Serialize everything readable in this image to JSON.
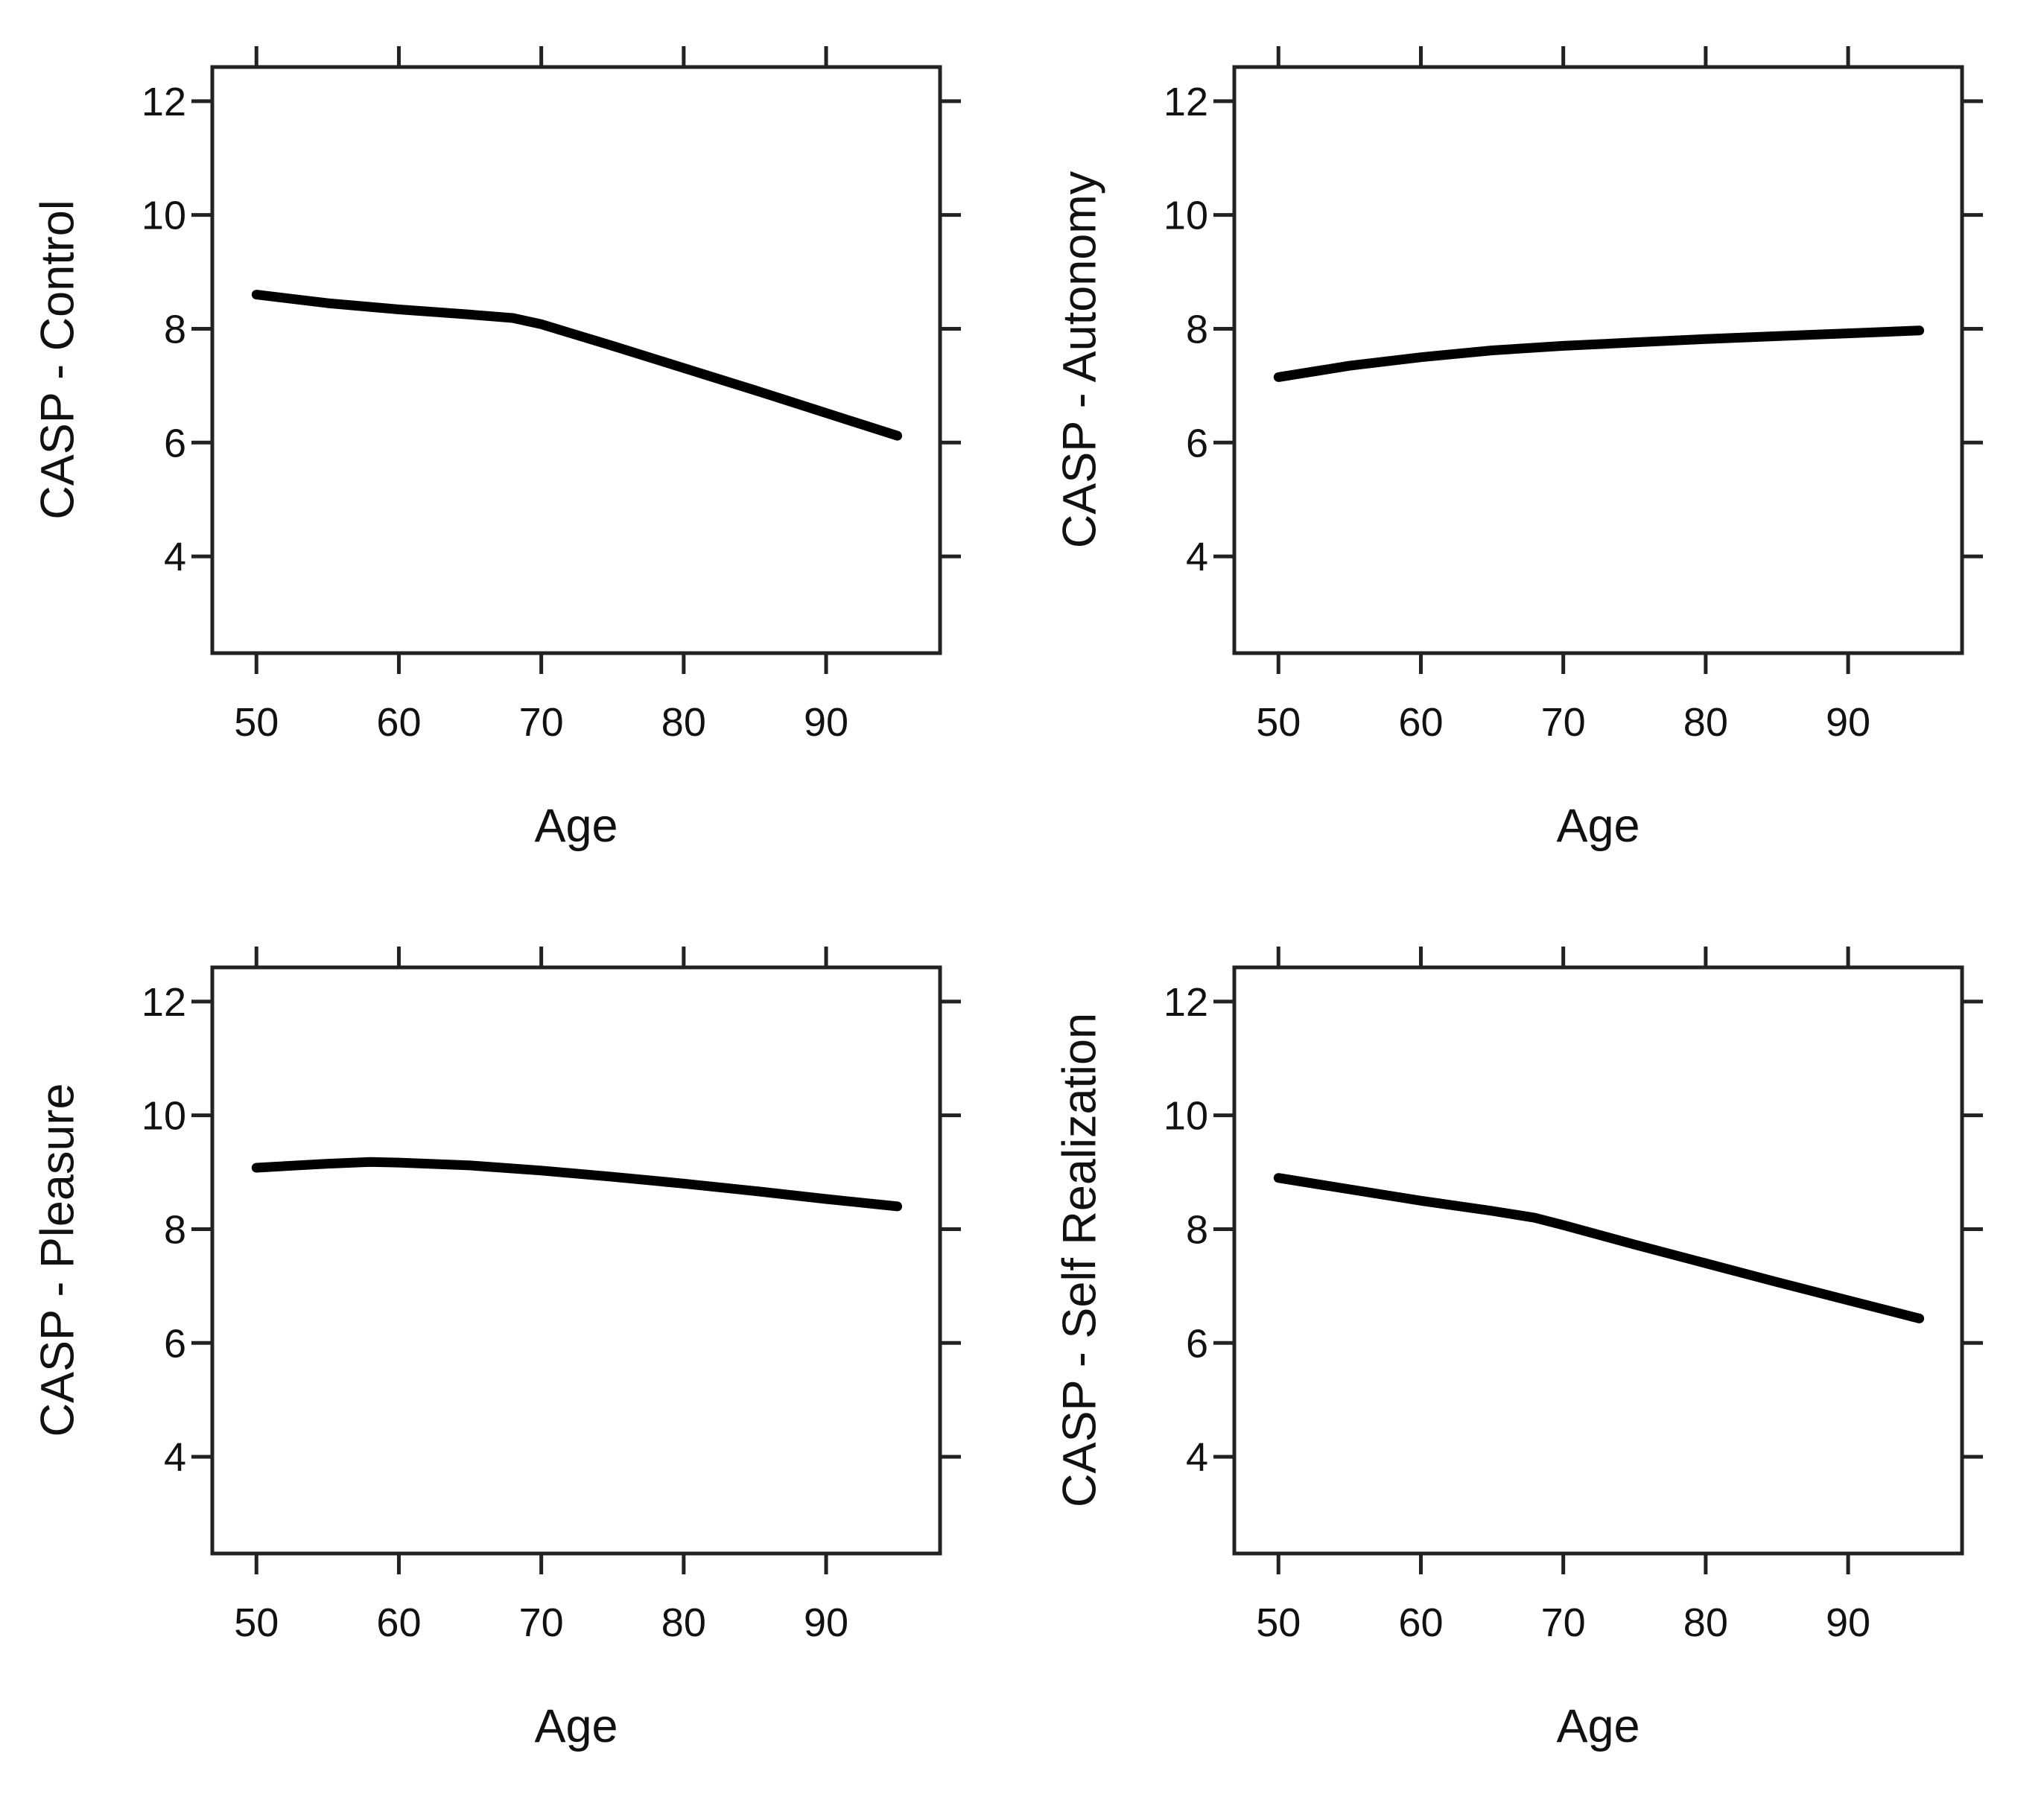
{
  "figure": {
    "background": "#ffffff",
    "text_color": "#111111",
    "axis_color": "#222222",
    "curve_color": "#000000"
  },
  "chart_data": [
    {
      "id": "casp-control",
      "type": "line",
      "title": "",
      "xlabel": "Age",
      "ylabel": "CASP - Control",
      "x": [
        50,
        55,
        60,
        65,
        68,
        70,
        75,
        80,
        85,
        90,
        95
      ],
      "y": [
        8.6,
        8.45,
        8.34,
        8.25,
        8.19,
        8.08,
        7.7,
        7.31,
        6.92,
        6.52,
        6.12
      ],
      "xticks": [
        50,
        60,
        70,
        80,
        90
      ],
      "yticks": [
        4,
        6,
        8,
        10,
        12
      ],
      "xlim": [
        46.9,
        98.0
      ],
      "ylim": [
        2.3,
        12.6
      ],
      "grid": false,
      "legend_position": "none",
      "line_color": "#000000"
    },
    {
      "id": "casp-autonomy",
      "type": "line",
      "title": "",
      "xlabel": "Age",
      "ylabel": "CASP - Autonomy",
      "x": [
        50,
        55,
        60,
        65,
        70,
        75,
        80,
        85,
        90,
        95
      ],
      "y": [
        7.15,
        7.35,
        7.5,
        7.62,
        7.7,
        7.76,
        7.82,
        7.87,
        7.92,
        7.97
      ],
      "xticks": [
        50,
        60,
        70,
        80,
        90
      ],
      "yticks": [
        4,
        6,
        8,
        10,
        12
      ],
      "xlim": [
        46.9,
        98.0
      ],
      "ylim": [
        2.3,
        12.6
      ],
      "grid": false,
      "legend_position": "none",
      "line_color": "#000000"
    },
    {
      "id": "casp-pleasure",
      "type": "line",
      "title": "",
      "xlabel": "Age",
      "ylabel": "CASP - Pleasure",
      "x": [
        50,
        55,
        58,
        60,
        65,
        70,
        75,
        80,
        85,
        90,
        95
      ],
      "y": [
        9.08,
        9.15,
        9.18,
        9.17,
        9.12,
        9.03,
        8.92,
        8.8,
        8.67,
        8.53,
        8.4
      ],
      "xticks": [
        50,
        60,
        70,
        80,
        90
      ],
      "yticks": [
        4,
        6,
        8,
        10,
        12
      ],
      "xlim": [
        46.9,
        98.0
      ],
      "ylim": [
        2.3,
        12.6
      ],
      "grid": false,
      "legend_position": "none",
      "line_color": "#000000"
    },
    {
      "id": "casp-self-realization",
      "type": "line",
      "title": "",
      "xlabel": "Age",
      "ylabel": "CASP - Self Realization",
      "x": [
        50,
        55,
        60,
        65,
        68,
        70,
        75,
        80,
        85,
        90,
        95
      ],
      "y": [
        8.9,
        8.7,
        8.5,
        8.32,
        8.2,
        8.07,
        7.73,
        7.4,
        7.07,
        6.75,
        6.43
      ],
      "xticks": [
        50,
        60,
        70,
        80,
        90
      ],
      "yticks": [
        4,
        6,
        8,
        10,
        12
      ],
      "xlim": [
        46.9,
        98.0
      ],
      "ylim": [
        2.3,
        12.6
      ],
      "grid": false,
      "legend_position": "none",
      "line_color": "#000000"
    }
  ]
}
